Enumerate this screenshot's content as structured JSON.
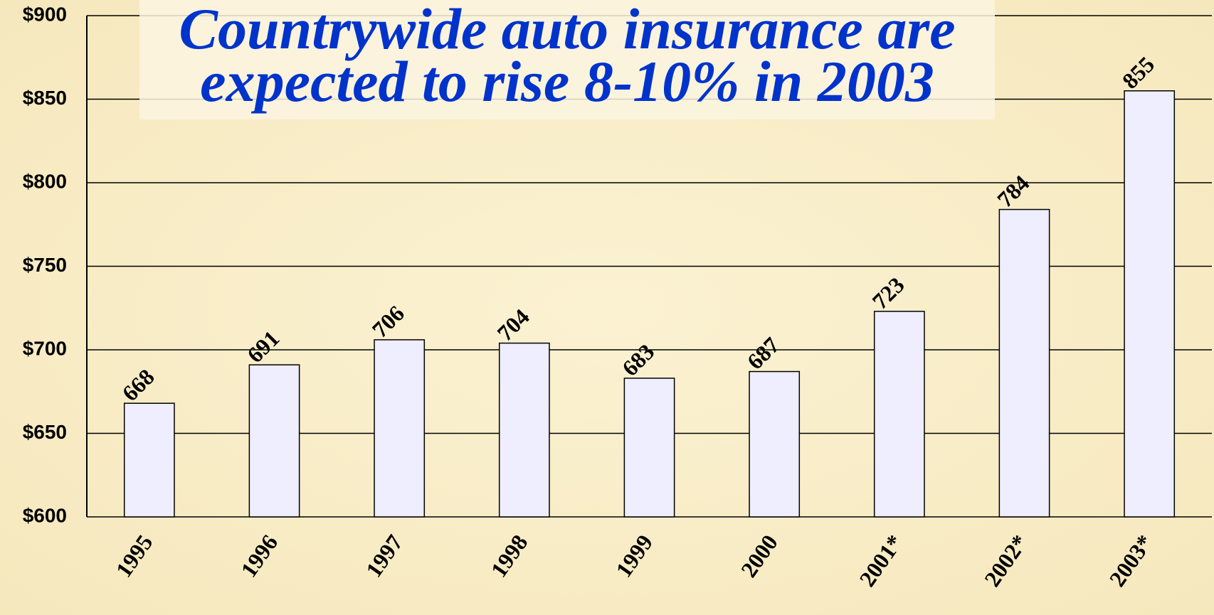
{
  "chart_data": {
    "type": "bar",
    "title": [
      "Countrywide auto insurance are",
      "expected to rise 8-10% in 2003"
    ],
    "categories": [
      "1995",
      "1996",
      "1997",
      "1998",
      "1999",
      "2000",
      "2001*",
      "2002*",
      "2003*"
    ],
    "values": [
      668,
      691,
      706,
      704,
      683,
      687,
      723,
      784,
      855
    ],
    "color": "#eeeeff",
    "ylim": [
      600,
      900
    ],
    "yticks": [
      {
        "value": 600,
        "label": "$600"
      },
      {
        "value": 650,
        "label": "$650"
      },
      {
        "value": 700,
        "label": "$700"
      },
      {
        "value": 750,
        "label": "$750"
      },
      {
        "value": 800,
        "label": "$800"
      },
      {
        "value": 850,
        "label": "$850"
      },
      {
        "value": 900,
        "label": "$900"
      }
    ],
    "grid": true
  }
}
